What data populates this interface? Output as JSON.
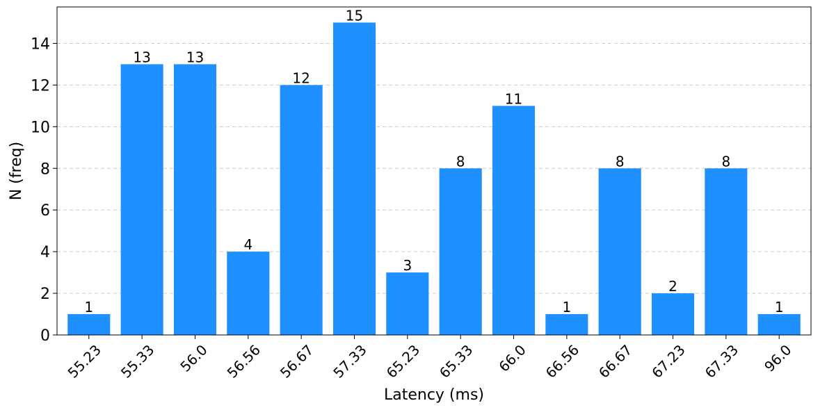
{
  "chart_data": {
    "type": "bar",
    "title": "",
    "xlabel": "Latency (ms)",
    "ylabel": "N (freq)",
    "categories": [
      "55.23",
      "55.33",
      "56.0",
      "56.56",
      "56.67",
      "57.33",
      "65.23",
      "65.33",
      "66.0",
      "66.56",
      "66.67",
      "67.23",
      "67.33",
      "96.0"
    ],
    "values": [
      1,
      13,
      13,
      4,
      12,
      15,
      3,
      8,
      11,
      1,
      8,
      2,
      8,
      1
    ],
    "ylim": [
      0,
      15.75
    ],
    "yticks": [
      0,
      2,
      4,
      6,
      8,
      10,
      12,
      14
    ],
    "grid": "y-dashed",
    "legend": "none",
    "bar_color": "#1E90FF",
    "grid_color": "#cccccc",
    "x_tick_rotation": 45
  }
}
